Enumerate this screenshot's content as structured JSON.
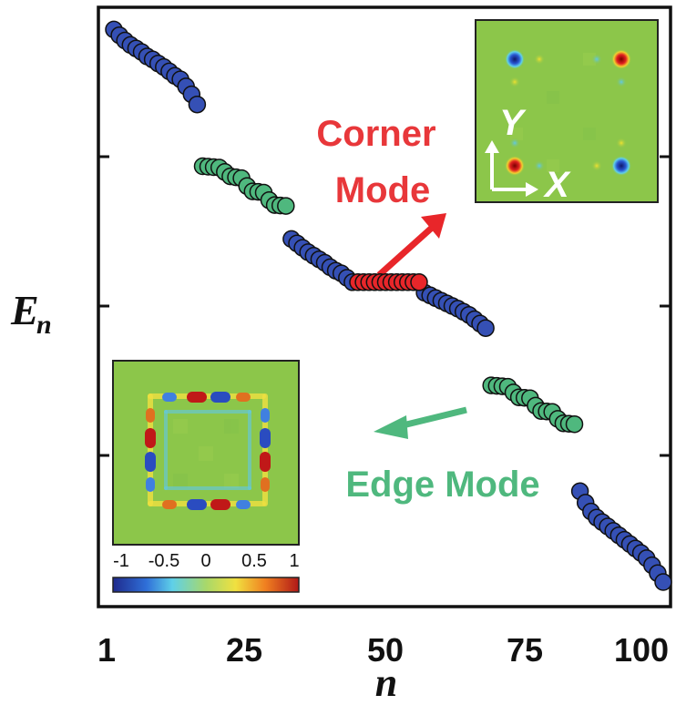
{
  "chart_data": {
    "type": "scatter",
    "xlabel": "n",
    "ylabel": "E",
    "ylabel_sub": "n",
    "xticks": [
      "1",
      "25",
      "50",
      "75",
      "100"
    ],
    "xlim": [
      1,
      100
    ],
    "series": [
      {
        "color": "#3550b5",
        "points": [
          [
            1,
            8.95
          ],
          [
            2,
            8.82
          ],
          [
            3,
            8.7
          ],
          [
            4,
            8.6
          ],
          [
            5,
            8.52
          ],
          [
            6,
            8.44
          ],
          [
            7,
            8.34
          ],
          [
            8,
            8.27
          ],
          [
            9,
            8.18
          ],
          [
            10,
            8.1
          ],
          [
            11,
            8.0
          ],
          [
            12,
            7.9
          ],
          [
            13,
            7.82
          ],
          [
            14,
            7.66
          ],
          [
            15,
            7.48
          ],
          [
            16,
            7.25
          ],
          [
            33,
            4.2
          ],
          [
            34,
            4.1
          ],
          [
            35,
            4.0
          ],
          [
            36,
            3.9
          ],
          [
            37,
            3.82
          ],
          [
            38,
            3.74
          ],
          [
            39,
            3.66
          ],
          [
            40,
            3.56
          ],
          [
            41,
            3.48
          ],
          [
            42,
            3.42
          ],
          [
            43,
            3.32
          ],
          [
            44,
            3.22
          ],
          [
            57,
            2.98
          ],
          [
            58,
            2.92
          ],
          [
            59,
            2.86
          ],
          [
            60,
            2.8
          ],
          [
            61,
            2.74
          ],
          [
            62,
            2.68
          ],
          [
            63,
            2.62
          ],
          [
            64,
            2.55
          ],
          [
            65,
            2.48
          ],
          [
            66,
            2.38
          ],
          [
            67,
            2.28
          ],
          [
            68,
            2.18
          ],
          [
            85,
            -1.52
          ],
          [
            86,
            -1.78
          ],
          [
            87,
            -1.98
          ],
          [
            88,
            -2.12
          ],
          [
            89,
            -2.22
          ],
          [
            90,
            -2.32
          ],
          [
            91,
            -2.42
          ],
          [
            92,
            -2.52
          ],
          [
            93,
            -2.62
          ],
          [
            94,
            -2.72
          ],
          [
            95,
            -2.82
          ],
          [
            96,
            -2.92
          ],
          [
            97,
            -3.04
          ],
          [
            98,
            -3.2
          ],
          [
            99,
            -3.38
          ],
          [
            100,
            -3.58
          ]
        ]
      },
      {
        "color": "#4fb87e",
        "points": [
          [
            17,
            5.85
          ],
          [
            18,
            5.84
          ],
          [
            19,
            5.83
          ],
          [
            20,
            5.82
          ],
          [
            21,
            5.72
          ],
          [
            22,
            5.62
          ],
          [
            23,
            5.6
          ],
          [
            24,
            5.58
          ],
          [
            25,
            5.4
          ],
          [
            26,
            5.28
          ],
          [
            27,
            5.27
          ],
          [
            28,
            5.25
          ],
          [
            29,
            5.08
          ],
          [
            30,
            4.97
          ],
          [
            31,
            4.96
          ],
          [
            32,
            4.95
          ],
          [
            69,
            0.88
          ],
          [
            70,
            0.87
          ],
          [
            71,
            0.86
          ],
          [
            72,
            0.85
          ],
          [
            73,
            0.72
          ],
          [
            74,
            0.61
          ],
          [
            75,
            0.6
          ],
          [
            76,
            0.59
          ],
          [
            77,
            0.42
          ],
          [
            78,
            0.3
          ],
          [
            79,
            0.29
          ],
          [
            80,
            0.28
          ],
          [
            81,
            0.12
          ],
          [
            82,
            0.02
          ],
          [
            83,
            0.01
          ],
          [
            84,
            0.0
          ]
        ]
      },
      {
        "color": "#e8262a",
        "points": [
          [
            45,
            3.22
          ],
          [
            46,
            3.22
          ],
          [
            47,
            3.22
          ],
          [
            48,
            3.22
          ],
          [
            49,
            3.22
          ],
          [
            50,
            3.22
          ],
          [
            51,
            3.22
          ],
          [
            52,
            3.22
          ],
          [
            53,
            3.22
          ],
          [
            54,
            3.22
          ],
          [
            55,
            3.22
          ],
          [
            56,
            3.22
          ]
        ]
      }
    ],
    "annotations": {
      "corner": {
        "lines": [
          "Corner",
          "Mode"
        ],
        "color": "#e8373a"
      },
      "edge": {
        "text": "Edge Mode",
        "color": "#4fb87e"
      }
    },
    "insets": {
      "corner_axes": [
        "Y",
        "X"
      ],
      "colorbar": {
        "labels": [
          "-1",
          "-0.5",
          "0",
          "0.5",
          "1"
        ],
        "colors": [
          "#1f2a8c",
          "#2f8fe0",
          "#5fd0e8",
          "#a8d86a",
          "#f0e040",
          "#f08020",
          "#b01818"
        ]
      },
      "background": "#8cc64a"
    }
  }
}
